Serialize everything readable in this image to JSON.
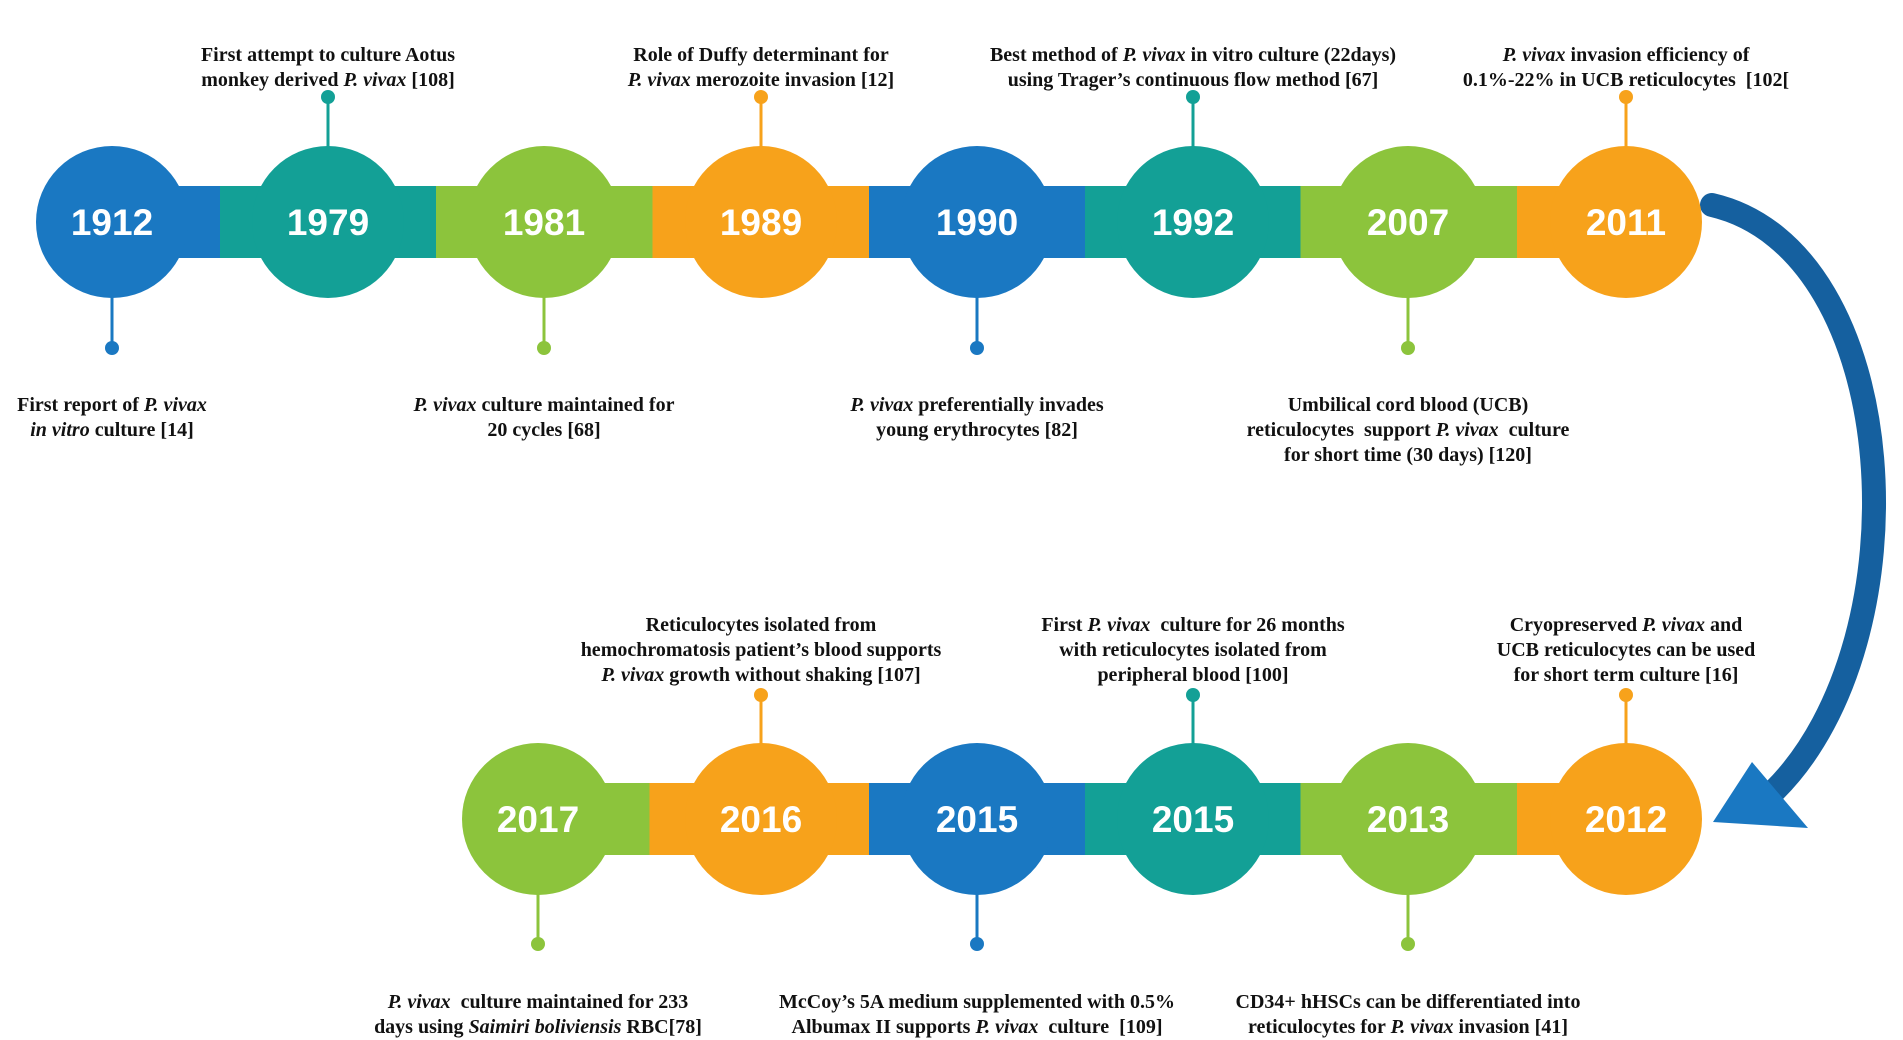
{
  "rows": [
    {
      "nodes": [
        {
          "year": "1912",
          "color": "#1a78c2",
          "caption": [
            [
              "First report of ",
              {
                "text": "P. vivax",
                "italic": true
              }
            ],
            [
              {
                "text": "in vitro",
                "italic": true
              },
              " culture [14]"
            ]
          ]
        },
        {
          "year": "1979",
          "color": "#13a096",
          "caption": [
            [
              "First attempt to culture Aotus"
            ],
            [
              "monkey derived ",
              {
                "text": "P. vivax",
                "italic": true
              },
              " [108]"
            ]
          ]
        },
        {
          "year": "1981",
          "color": "#8cc43c",
          "caption": [
            [
              {
                "text": "P. vivax",
                "italic": true
              },
              " culture maintained for"
            ],
            [
              "20 cycles [68]"
            ]
          ]
        },
        {
          "year": "1989",
          "color": "#f7a21b",
          "caption": [
            [
              "Role of Duffy determinant for"
            ],
            [
              {
                "text": "P. vivax",
                "italic": true
              },
              " merozoite invasion [12]"
            ]
          ]
        },
        {
          "year": "1990",
          "color": "#1a78c2",
          "caption": [
            [
              {
                "text": "P. vivax",
                "italic": true
              },
              " preferentially invades"
            ],
            [
              "young erythrocytes [82]"
            ]
          ]
        },
        {
          "year": "1992",
          "color": "#13a096",
          "caption": [
            [
              "Best method of ",
              {
                "text": "P. vivax",
                "italic": true
              },
              " in vitro culture (22days)"
            ],
            [
              "using Trager’s continuous flow method [67]"
            ]
          ]
        },
        {
          "year": "2007",
          "color": "#8cc43c",
          "caption": [
            [
              "Umbilical cord blood (UCB)"
            ],
            [
              "reticulocytes  support ",
              {
                "text": "P. vivax",
                "italic": true
              },
              "  culture"
            ],
            [
              "for short time (30 days) [120]"
            ]
          ]
        },
        {
          "year": "2011",
          "color": "#f7a21b",
          "caption": [
            [
              {
                "text": "P. vivax",
                "italic": true
              },
              " invasion efficiency of"
            ],
            [
              "0.1%-22% in UCB reticulocytes  [102["
            ]
          ]
        }
      ]
    },
    {
      "nodes": [
        {
          "year": "2017",
          "color": "#8cc43c",
          "caption": [
            [
              {
                "text": "P. vivax",
                "italic": true
              },
              "  culture maintained for 233"
            ],
            [
              "days using ",
              {
                "text": "Saimiri boliviensis",
                "italic": true
              },
              " RBC[78]"
            ]
          ]
        },
        {
          "year": "2016",
          "color": "#f7a21b",
          "caption": [
            [
              "Reticulocytes isolated from"
            ],
            [
              "hemochromatosis patient’s blood supports"
            ],
            [
              {
                "text": "P. vivax",
                "italic": true
              },
              " growth without shaking [107]"
            ]
          ]
        },
        {
          "year": "2015",
          "color": "#1a78c2",
          "caption": [
            [
              "McCoy’s 5A medium supplemented with 0.5%"
            ],
            [
              "Albumax II supports ",
              {
                "text": "P. vivax",
                "italic": true
              },
              "  culture  [109]"
            ]
          ]
        },
        {
          "year": "2015",
          "color": "#13a096",
          "caption": [
            [
              "First ",
              {
                "text": "P. vivax",
                "italic": true
              },
              "  culture for 26 months"
            ],
            [
              "with reticulocytes isolated from"
            ],
            [
              "peripheral blood [100]"
            ]
          ]
        },
        {
          "year": "2013",
          "color": "#8cc43c",
          "caption": [
            [
              "CD34+ hHSCs can be differentiated into"
            ],
            [
              "reticulocytes for ",
              {
                "text": "P. vivax",
                "italic": true
              },
              " invasion [41]"
            ]
          ]
        },
        {
          "year": "2012",
          "color": "#f7a21b",
          "caption": [
            [
              "Cryopreserved ",
              {
                "text": "P. vivax",
                "italic": true
              },
              " and"
            ],
            [
              "UCB reticulocytes can be used"
            ],
            [
              "for short term culture [16]"
            ]
          ]
        }
      ]
    }
  ]
}
